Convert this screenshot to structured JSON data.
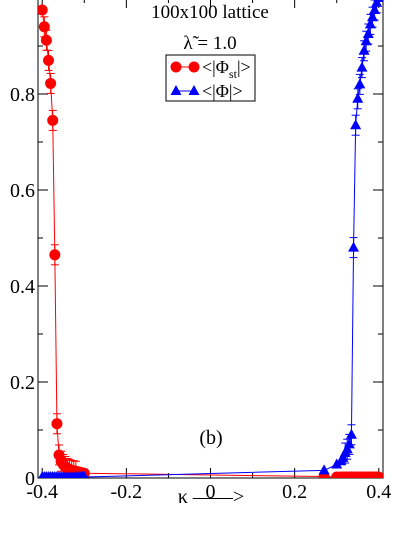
{
  "chart_data": {
    "type": "line",
    "title": "100x100 lattice",
    "subtitle": "λ̃ = 1.0",
    "xlabel": "κ ——>",
    "ylabel": "",
    "xlim": [
      -0.41,
      0.41
    ],
    "ylim": [
      0,
      1.0
    ],
    "x_ticks": [
      -0.4,
      -0.2,
      0,
      0.2,
      0.4
    ],
    "x_tick_labels": [
      "-0.4",
      "-0.2",
      "0",
      "0.2",
      "0.4"
    ],
    "y_ticks": [
      0,
      0.2,
      0.4,
      0.6,
      0.8
    ],
    "y_tick_labels": [
      "0",
      "0.2",
      "0.4",
      "0.6",
      "0.8"
    ],
    "grid": false,
    "legend_position": "top-center",
    "annotation": "(b)",
    "series": [
      {
        "name": "<|Φ_st|>",
        "legend_main": "<|Φ",
        "legend_sub": "st",
        "legend_end": "|>",
        "color": "#ff0000",
        "marker": "circle",
        "points": [
          [
            -0.4,
            0.975
          ],
          [
            -0.395,
            0.94
          ],
          [
            -0.39,
            0.912
          ],
          [
            -0.385,
            0.87
          ],
          [
            -0.38,
            0.822
          ],
          [
            -0.375,
            0.745
          ],
          [
            -0.37,
            0.465
          ],
          [
            -0.365,
            0.113
          ],
          [
            -0.36,
            0.048
          ],
          [
            -0.355,
            0.035
          ],
          [
            -0.35,
            0.028
          ],
          [
            -0.345,
            0.024
          ],
          [
            -0.34,
            0.02
          ],
          [
            -0.335,
            0.018
          ],
          [
            -0.33,
            0.016
          ],
          [
            -0.325,
            0.015
          ],
          [
            -0.32,
            0.014
          ],
          [
            -0.315,
            0.013
          ],
          [
            -0.31,
            0.012
          ],
          [
            -0.305,
            0.011
          ],
          [
            -0.3,
            0.01
          ],
          [
            0.27,
            0.003
          ],
          [
            0.3,
            0.002
          ],
          [
            0.31,
            0.002
          ],
          [
            0.315,
            0.002
          ],
          [
            0.32,
            0.002
          ],
          [
            0.325,
            0.002
          ],
          [
            0.33,
            0.002
          ],
          [
            0.335,
            0.002
          ],
          [
            0.34,
            0.002
          ],
          [
            0.345,
            0.002
          ],
          [
            0.35,
            0.002
          ],
          [
            0.355,
            0.002
          ],
          [
            0.36,
            0.002
          ],
          [
            0.365,
            0.002
          ],
          [
            0.37,
            0.002
          ],
          [
            0.375,
            0.002
          ],
          [
            0.38,
            0.002
          ],
          [
            0.385,
            0.002
          ],
          [
            0.39,
            0.002
          ],
          [
            0.395,
            0.002
          ],
          [
            0.4,
            0.002
          ]
        ]
      },
      {
        "name": "<|Φ|>",
        "legend_main": "<|Φ|>",
        "legend_sub": "",
        "legend_end": "",
        "color": "#0000ff",
        "marker": "triangle",
        "points": [
          [
            -0.4,
            0.002
          ],
          [
            -0.395,
            0.002
          ],
          [
            -0.39,
            0.002
          ],
          [
            -0.385,
            0.002
          ],
          [
            -0.38,
            0.002
          ],
          [
            -0.375,
            0.002
          ],
          [
            -0.37,
            0.002
          ],
          [
            -0.365,
            0.002
          ],
          [
            -0.36,
            0.002
          ],
          [
            -0.355,
            0.002
          ],
          [
            -0.35,
            0.002
          ],
          [
            -0.345,
            0.002
          ],
          [
            -0.34,
            0.002
          ],
          [
            -0.335,
            0.002
          ],
          [
            -0.33,
            0.002
          ],
          [
            -0.325,
            0.002
          ],
          [
            -0.32,
            0.002
          ],
          [
            -0.315,
            0.002
          ],
          [
            -0.31,
            0.002
          ],
          [
            -0.305,
            0.002
          ],
          [
            -0.3,
            0.002
          ],
          [
            0.27,
            0.016
          ],
          [
            0.3,
            0.028
          ],
          [
            0.31,
            0.035
          ],
          [
            0.315,
            0.042
          ],
          [
            0.32,
            0.052
          ],
          [
            0.325,
            0.06
          ],
          [
            0.33,
            0.07
          ],
          [
            0.335,
            0.09
          ],
          [
            0.34,
            0.48
          ],
          [
            0.345,
            0.735
          ],
          [
            0.35,
            0.79
          ],
          [
            0.355,
            0.82
          ],
          [
            0.36,
            0.855
          ],
          [
            0.365,
            0.89
          ],
          [
            0.37,
            0.91
          ],
          [
            0.375,
            0.925
          ],
          [
            0.38,
            0.945
          ],
          [
            0.385,
            0.96
          ],
          [
            0.39,
            0.975
          ],
          [
            0.395,
            0.99
          ],
          [
            0.4,
            1.0
          ]
        ]
      }
    ]
  }
}
